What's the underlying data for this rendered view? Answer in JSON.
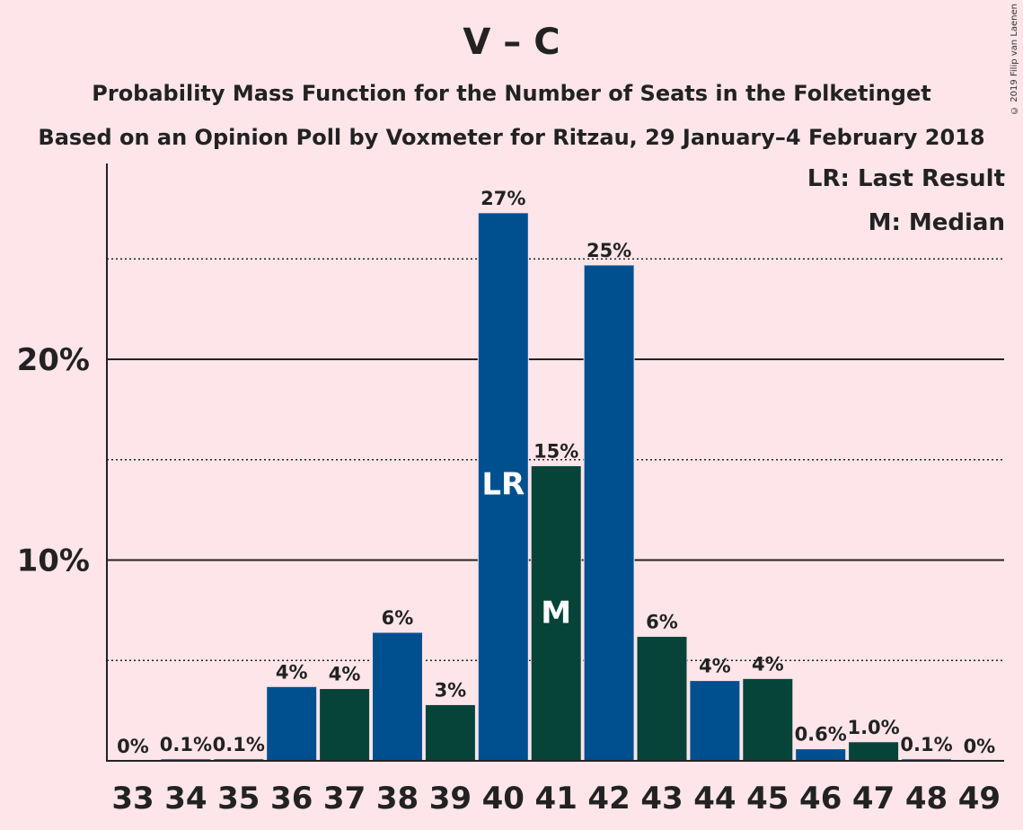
{
  "title": "V – C",
  "subtitle1": "Probability Mass Function for the Number of Seats in the Folketinget",
  "subtitle2": "Based on an Opinion Poll by Voxmeter for Ritzau, 29 January–4 February 2018",
  "copyright": "© 2019 Filip van Laenen",
  "legend": {
    "lr": "LR: Last Result",
    "m": "M: Median"
  },
  "colors": {
    "background": "#FDE5EA",
    "blue": "#00508F",
    "green": "#06443A",
    "text": "#222222"
  },
  "chart_data": {
    "type": "bar",
    "categories": [
      "33",
      "34",
      "35",
      "36",
      "37",
      "38",
      "39",
      "40",
      "41",
      "42",
      "43",
      "44",
      "45",
      "46",
      "47",
      "48",
      "49"
    ],
    "values": [
      0,
      0.1,
      0.1,
      3.7,
      3.6,
      6.4,
      2.8,
      27.3,
      14.7,
      24.7,
      6.2,
      4.0,
      4.1,
      0.6,
      0.95,
      0.1,
      0
    ],
    "labels": [
      "0%",
      "0.1%",
      "0.1%",
      "4%",
      "4%",
      "6%",
      "3%",
      "27%",
      "15%",
      "25%",
      "6%",
      "4%",
      "4%",
      "0.6%",
      "1.0%",
      "0.1%",
      "0%"
    ],
    "bar_colors": [
      "blue",
      "blue",
      "green",
      "blue",
      "green",
      "blue",
      "green",
      "blue",
      "green",
      "blue",
      "green",
      "blue",
      "green",
      "blue",
      "green",
      "blue",
      "green"
    ],
    "markers": {
      "40": "LR",
      "41": "M"
    },
    "yticks": [
      10,
      20
    ],
    "ytick_labels": [
      "10%",
      "20%"
    ],
    "ylim": [
      0,
      30
    ],
    "grid": {
      "solid": [
        10,
        20
      ],
      "dotted": [
        5,
        15,
        25
      ]
    }
  }
}
